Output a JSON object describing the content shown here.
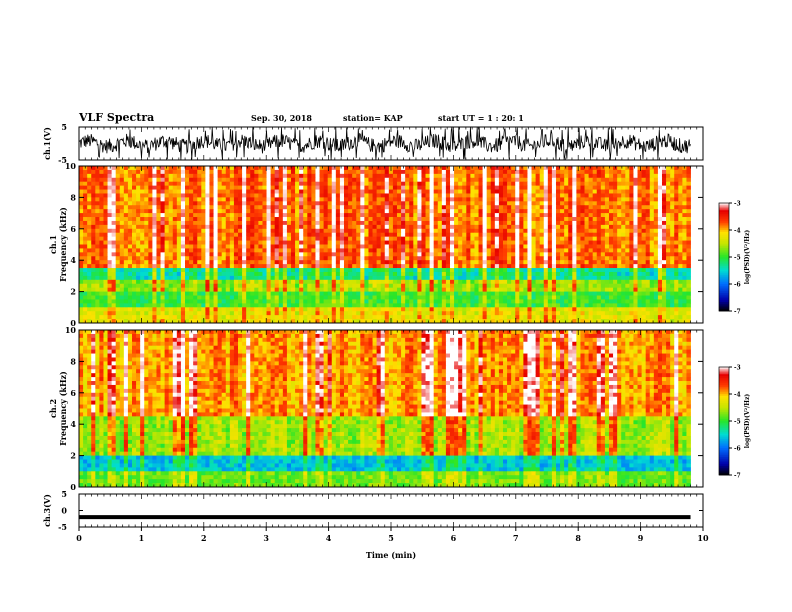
{
  "header": {
    "title": "VLF Spectra",
    "date": "Sep. 30, 2018",
    "station": "station= KAP",
    "start": "start  UT  =   1 : 20: 1"
  },
  "chart_data": [
    {
      "type": "line",
      "panel": "ch1-waveform",
      "ylabel": "ch.1(V)",
      "ylim": [
        -5,
        5
      ],
      "yticks": [
        "5",
        "-5"
      ],
      "xlim": [
        0,
        10
      ],
      "color": "#000000",
      "description_values": {
        "amplitude_range": [
          -5,
          5
        ],
        "data_end_min": 9.8
      }
    },
    {
      "type": "heatmap",
      "panel": "ch1-spectrogram",
      "ylabel": "ch.1\nFrequency (kHz)",
      "ylabel_lines": [
        "ch.1",
        "Frequency (kHz)"
      ],
      "ylim": [
        0,
        10
      ],
      "yticks": [
        "0",
        "2",
        "4",
        "6",
        "8",
        "10"
      ],
      "xlim": [
        0,
        10
      ],
      "data_end_min": 9.8,
      "bands": [
        {
          "from_khz": 3.6,
          "to_khz": 10,
          "level": -3.8
        },
        {
          "from_khz": 2.7,
          "to_khz": 3.6,
          "level": -5.3
        },
        {
          "from_khz": 2.0,
          "to_khz": 2.7,
          "level": -4.6
        },
        {
          "from_khz": 0.9,
          "to_khz": 2.0,
          "level": -5.0
        },
        {
          "from_khz": 0.0,
          "to_khz": 0.9,
          "level": -4.3
        }
      ],
      "colorbar": {
        "label": "log(PSD)(V²/Hz)",
        "ticks": [
          "-3",
          "-4",
          "-5",
          "-6",
          "-7"
        ],
        "range": [
          -7,
          -3
        ]
      }
    },
    {
      "type": "heatmap",
      "panel": "ch2-spectrogram",
      "ylabel": "ch.2\nFrequency (kHz)",
      "ylabel_lines": [
        "ch.2",
        "Frequency (kHz)"
      ],
      "ylim": [
        0,
        10
      ],
      "yticks": [
        "0",
        "2",
        "4",
        "6",
        "8",
        "10"
      ],
      "xlim": [
        0,
        10
      ],
      "data_end_min": 9.8,
      "bands": [
        {
          "from_khz": 4.5,
          "to_khz": 10,
          "level": -3.9
        },
        {
          "from_khz": 2.0,
          "to_khz": 4.5,
          "level": -4.6
        },
        {
          "from_khz": 0.9,
          "to_khz": 2.0,
          "level": -5.6
        },
        {
          "from_khz": 0.0,
          "to_khz": 0.9,
          "level": -4.8
        }
      ],
      "colorbar": {
        "label": "log(PSD)(V²/Hz)",
        "ticks": [
          "-3",
          "-4",
          "-5",
          "-6",
          "-7"
        ],
        "range": [
          -7,
          -3
        ]
      }
    },
    {
      "type": "line",
      "panel": "ch3-waveform",
      "ylabel": "ch.3(V)",
      "ylim": [
        -5,
        5
      ],
      "yticks": [
        "5",
        "0",
        "-5"
      ],
      "xlim": [
        0,
        10
      ],
      "xticks": [
        "0",
        "1",
        "2",
        "3",
        "4",
        "5",
        "6",
        "7",
        "8",
        "9",
        "10"
      ],
      "xlabel": "Time (min)",
      "constant_value": -2,
      "data_end_min": 9.8,
      "color": "#000000"
    }
  ]
}
